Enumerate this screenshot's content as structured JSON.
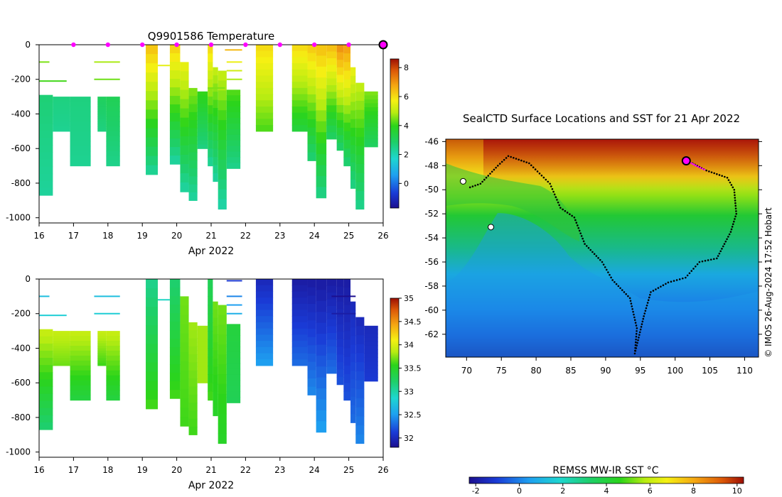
{
  "chart_data": [
    {
      "type": "heatmap",
      "name": "temperature-section",
      "title": "Q9901586  Temperature",
      "xlabel": "Apr 2022",
      "ylabel": "",
      "xlim": [
        16,
        26
      ],
      "ylim": [
        -1030,
        0
      ],
      "x_ticks": [
        16,
        17,
        18,
        19,
        20,
        21,
        22,
        23,
        24,
        25,
        26
      ],
      "y_ticks": [
        0,
        -200,
        -400,
        -600,
        -800,
        -1000
      ],
      "colorbar": {
        "min": -1.7,
        "max": 8.6,
        "ticks": [
          0,
          2,
          4,
          6,
          8
        ]
      },
      "surface_markers_x": [
        17,
        18,
        19,
        20,
        21,
        22,
        23,
        24,
        25
      ],
      "current_profile_x": 26,
      "profiles": [
        {
          "x0": 16.0,
          "x1": 16.4,
          "top": -290,
          "bottom": -870,
          "vtop": 2.7,
          "vbot": 2.3
        },
        {
          "x0": 16.4,
          "x1": 16.9,
          "top": -300,
          "bottom": -500,
          "vtop": 2.6,
          "vbot": 2.4
        },
        {
          "x0": 16.9,
          "x1": 17.5,
          "top": -300,
          "bottom": -700,
          "vtop": 2.6,
          "vbot": 2.4
        },
        {
          "x0": 17.7,
          "x1": 17.95,
          "top": -300,
          "bottom": -500,
          "vtop": 3.0,
          "vbot": 2.6
        },
        {
          "x0": 17.95,
          "x1": 18.35,
          "top": -300,
          "bottom": -700,
          "vtop": 3.1,
          "vbot": 2.5
        },
        {
          "x0": 19.1,
          "x1": 19.45,
          "top": 0,
          "bottom": -750,
          "vtop": 6.3,
          "vbot": 2.4
        },
        {
          "x0": 19.8,
          "x1": 20.1,
          "top": 0,
          "bottom": -690,
          "vtop": 6.1,
          "vbot": 2.3
        },
        {
          "x0": 20.1,
          "x1": 20.35,
          "top": -100,
          "bottom": -850,
          "vtop": 5.5,
          "vbot": 2.3
        },
        {
          "x0": 20.35,
          "x1": 20.6,
          "top": -250,
          "bottom": -900,
          "vtop": 4.5,
          "vbot": 2.3
        },
        {
          "x0": 20.6,
          "x1": 20.9,
          "top": -270,
          "bottom": -600,
          "vtop": 4.0,
          "vbot": 2.6
        },
        {
          "x0": 20.9,
          "x1": 21.05,
          "top": 0,
          "bottom": -700,
          "vtop": 6.0,
          "vbot": 2.4
        },
        {
          "x0": 21.05,
          "x1": 21.2,
          "top": -130,
          "bottom": -790,
          "vtop": 5.0,
          "vbot": 2.3
        },
        {
          "x0": 21.2,
          "x1": 21.45,
          "top": -150,
          "bottom": -950,
          "vtop": 5.0,
          "vbot": 2.2
        },
        {
          "x0": 21.45,
          "x1": 21.85,
          "top": -260,
          "bottom": -715,
          "vtop": 4.2,
          "vbot": 2.5
        },
        {
          "x0": 22.3,
          "x1": 22.8,
          "top": 0,
          "bottom": -500,
          "vtop": 6.0,
          "vbot": 4.2
        },
        {
          "x0": 23.35,
          "x1": 23.8,
          "top": 0,
          "bottom": -500,
          "vtop": 6.0,
          "vbot": 3.5
        },
        {
          "x0": 23.8,
          "x1": 24.05,
          "top": 0,
          "bottom": -670,
          "vtop": 6.2,
          "vbot": 2.8
        },
        {
          "x0": 24.05,
          "x1": 24.35,
          "top": 0,
          "bottom": -885,
          "vtop": 6.3,
          "vbot": 2.6
        },
        {
          "x0": 24.35,
          "x1": 24.65,
          "top": 0,
          "bottom": -545,
          "vtop": 6.4,
          "vbot": 3.0
        },
        {
          "x0": 24.65,
          "x1": 24.85,
          "top": 0,
          "bottom": -610,
          "vtop": 7.0,
          "vbot": 2.9
        },
        {
          "x0": 24.85,
          "x1": 25.05,
          "top": 0,
          "bottom": -700,
          "vtop": 6.8,
          "vbot": 2.8
        },
        {
          "x0": 25.05,
          "x1": 25.2,
          "top": -130,
          "bottom": -830,
          "vtop": 5.5,
          "vbot": 2.6
        },
        {
          "x0": 25.2,
          "x1": 25.45,
          "top": -220,
          "bottom": -950,
          "vtop": 5.0,
          "vbot": 2.5
        },
        {
          "x0": 25.45,
          "x1": 25.85,
          "top": -270,
          "bottom": -590,
          "vtop": 4.5,
          "vbot": 3.0
        }
      ],
      "fragments": [
        {
          "x0": 16.0,
          "x1": 16.3,
          "depth": -100,
          "v": 4.5
        },
        {
          "x0": 16.0,
          "x1": 16.8,
          "depth": -210,
          "v": 4.1
        },
        {
          "x0": 17.6,
          "x1": 18.35,
          "depth": -100,
          "v": 4.8
        },
        {
          "x0": 17.6,
          "x1": 18.35,
          "depth": -200,
          "v": 4.4
        },
        {
          "x0": 19.45,
          "x1": 19.8,
          "depth": -120,
          "v": 5.5
        },
        {
          "x0": 21.45,
          "x1": 21.9,
          "depth": -100,
          "v": 5.6
        },
        {
          "x0": 21.45,
          "x1": 21.9,
          "depth": -150,
          "v": 5.2
        },
        {
          "x0": 21.45,
          "x1": 21.9,
          "depth": -200,
          "v": 4.8
        },
        {
          "x0": 20.9,
          "x1": 21.4,
          "depth": -250,
          "v": 4.5
        },
        {
          "x0": 21.4,
          "x1": 21.9,
          "depth": -30,
          "v": 6.5
        },
        {
          "x0": 25.9,
          "x1": 26.0,
          "depth": 0,
          "v": 6.0
        }
      ]
    },
    {
      "type": "heatmap",
      "name": "salinity-section",
      "title": "",
      "xlabel": "Apr 2022",
      "ylabel": "",
      "xlim": [
        16,
        26
      ],
      "ylim": [
        -1030,
        0
      ],
      "x_ticks": [
        16,
        17,
        18,
        19,
        20,
        21,
        22,
        23,
        24,
        25,
        26
      ],
      "y_ticks": [
        0,
        -200,
        -400,
        -600,
        -800,
        -1000
      ],
      "colorbar": {
        "min": 31.8,
        "max": 35.0,
        "ticks": [
          32,
          32.5,
          33,
          33.5,
          34,
          34.5,
          35
        ]
      },
      "profiles": [
        {
          "x0": 16.0,
          "x1": 16.4,
          "top": -290,
          "bottom": -870,
          "vtop": 33.9,
          "vbot": 33.2
        },
        {
          "x0": 16.4,
          "x1": 16.9,
          "top": -300,
          "bottom": -500,
          "vtop": 33.9,
          "vbot": 33.7
        },
        {
          "x0": 16.9,
          "x1": 17.5,
          "top": -300,
          "bottom": -700,
          "vtop": 33.9,
          "vbot": 33.4
        },
        {
          "x0": 17.7,
          "x1": 17.95,
          "top": -300,
          "bottom": -500,
          "vtop": 33.9,
          "vbot": 33.6
        },
        {
          "x0": 17.95,
          "x1": 18.35,
          "top": -300,
          "bottom": -700,
          "vtop": 33.9,
          "vbot": 33.4
        },
        {
          "x0": 19.1,
          "x1": 19.45,
          "top": 0,
          "bottom": -750,
          "vtop": 33.1,
          "vbot": 33.6
        },
        {
          "x0": 19.8,
          "x1": 20.1,
          "top": 0,
          "bottom": -690,
          "vtop": 33.2,
          "vbot": 33.6
        },
        {
          "x0": 20.1,
          "x1": 20.35,
          "top": -100,
          "bottom": -850,
          "vtop": 33.7,
          "vbot": 33.6
        },
        {
          "x0": 20.35,
          "x1": 20.6,
          "top": -250,
          "bottom": -900,
          "vtop": 33.8,
          "vbot": 33.6
        },
        {
          "x0": 20.6,
          "x1": 20.9,
          "top": -270,
          "bottom": -600,
          "vtop": 33.8,
          "vbot": 33.8
        },
        {
          "x0": 20.9,
          "x1": 21.05,
          "top": 0,
          "bottom": -700,
          "vtop": 33.3,
          "vbot": 33.6
        },
        {
          "x0": 21.05,
          "x1": 21.2,
          "top": -130,
          "bottom": -790,
          "vtop": 33.7,
          "vbot": 33.5
        },
        {
          "x0": 21.2,
          "x1": 21.45,
          "top": -150,
          "bottom": -950,
          "vtop": 33.7,
          "vbot": 33.5
        },
        {
          "x0": 21.45,
          "x1": 21.85,
          "top": -260,
          "bottom": -715,
          "vtop": 33.4,
          "vbot": 33.3
        },
        {
          "x0": 22.3,
          "x1": 22.8,
          "top": 0,
          "bottom": -500,
          "vtop": 32.0,
          "vbot": 32.5
        },
        {
          "x0": 23.35,
          "x1": 23.8,
          "top": 0,
          "bottom": -500,
          "vtop": 31.9,
          "vbot": 32.3
        },
        {
          "x0": 23.8,
          "x1": 24.05,
          "top": 0,
          "bottom": -670,
          "vtop": 31.9,
          "vbot": 32.4
        },
        {
          "x0": 24.05,
          "x1": 24.35,
          "top": 0,
          "bottom": -885,
          "vtop": 31.9,
          "vbot": 32.5
        },
        {
          "x0": 24.35,
          "x1": 24.65,
          "top": 0,
          "bottom": -545,
          "vtop": 31.9,
          "vbot": 32.3
        },
        {
          "x0": 24.65,
          "x1": 24.85,
          "top": 0,
          "bottom": -610,
          "vtop": 31.9,
          "vbot": 32.2
        },
        {
          "x0": 24.85,
          "x1": 25.05,
          "top": 0,
          "bottom": -700,
          "vtop": 31.9,
          "vbot": 32.2
        },
        {
          "x0": 25.05,
          "x1": 25.2,
          "top": -130,
          "bottom": -830,
          "vtop": 32.0,
          "vbot": 32.3
        },
        {
          "x0": 25.2,
          "x1": 25.45,
          "top": -220,
          "bottom": -950,
          "vtop": 32.0,
          "vbot": 32.4
        },
        {
          "x0": 25.45,
          "x1": 25.85,
          "top": -270,
          "bottom": -590,
          "vtop": 32.0,
          "vbot": 32.1
        }
      ],
      "fragments": [
        {
          "x0": 16.0,
          "x1": 16.3,
          "depth": -100,
          "v": 32.7
        },
        {
          "x0": 16.0,
          "x1": 16.8,
          "depth": -210,
          "v": 32.8
        },
        {
          "x0": 17.6,
          "x1": 18.35,
          "depth": -100,
          "v": 32.7
        },
        {
          "x0": 17.6,
          "x1": 18.35,
          "depth": -200,
          "v": 32.8
        },
        {
          "x0": 19.45,
          "x1": 19.8,
          "depth": -120,
          "v": 32.9
        },
        {
          "x0": 21.45,
          "x1": 21.9,
          "depth": -100,
          "v": 32.4
        },
        {
          "x0": 21.45,
          "x1": 21.9,
          "depth": -150,
          "v": 32.5
        },
        {
          "x0": 21.45,
          "x1": 21.9,
          "depth": -200,
          "v": 32.6
        },
        {
          "x0": 21.45,
          "x1": 21.9,
          "depth": -10,
          "v": 32.1
        },
        {
          "x0": 24.5,
          "x1": 25.2,
          "depth": -100,
          "v": 31.8
        },
        {
          "x0": 24.5,
          "x1": 25.2,
          "depth": -200,
          "v": 31.9
        }
      ]
    },
    {
      "type": "map",
      "name": "sst-map",
      "title": "SealCTD Surface Locations and SST for 21 Apr 2022",
      "xlim": [
        67,
        112
      ],
      "ylim": [
        -63.9,
        -45.8
      ],
      "x_ticks": [
        70,
        75,
        80,
        85,
        90,
        95,
        100,
        105,
        110
      ],
      "y_ticks": [
        -46,
        -48,
        -50,
        -52,
        -54,
        -56,
        -58,
        -60,
        -62
      ],
      "colorbar": {
        "label": "REMSS MW-IR SST °C",
        "min": -2.3,
        "max": 10.3,
        "ticks": [
          -2,
          0,
          2,
          4,
          6,
          8,
          10
        ]
      },
      "track": [
        [
          70.5,
          -49.8
        ],
        [
          72,
          -49.5
        ],
        [
          74.5,
          -48
        ],
        [
          76,
          -47.2
        ],
        [
          79,
          -47.8
        ],
        [
          82,
          -49.5
        ],
        [
          83.5,
          -51.5
        ],
        [
          85.5,
          -52.3
        ],
        [
          87,
          -54.5
        ],
        [
          89.5,
          -56
        ],
        [
          91,
          -57.5
        ],
        [
          93.5,
          -59
        ],
        [
          94.5,
          -61.5
        ],
        [
          94.2,
          -63.6
        ]
      ],
      "track_east": [
        [
          94.2,
          -63.6
        ],
        [
          95.5,
          -60.5
        ],
        [
          96.5,
          -58.5
        ],
        [
          99,
          -57.7
        ],
        [
          101.5,
          -57.3
        ],
        [
          103.5,
          -56
        ],
        [
          106,
          -55.7
        ],
        [
          108,
          -53.5
        ],
        [
          108.8,
          -52
        ],
        [
          108.5,
          -50
        ],
        [
          107.5,
          -49
        ],
        [
          104.5,
          -48.4
        ],
        [
          102.5,
          -47.8
        ],
        [
          101.7,
          -47.6
        ]
      ],
      "recent_track": [
        [
          101.7,
          -47.6
        ],
        [
          103,
          -48
        ],
        [
          104.5,
          -48.4
        ]
      ],
      "current_position": [
        101.6,
        -47.6
      ],
      "islands": [
        [
          69.5,
          -49.3
        ],
        [
          73.5,
          -53.1
        ]
      ]
    }
  ],
  "footer": {
    "credit": "© IMOS 26-Aug-2024 17:52 Hobart"
  }
}
